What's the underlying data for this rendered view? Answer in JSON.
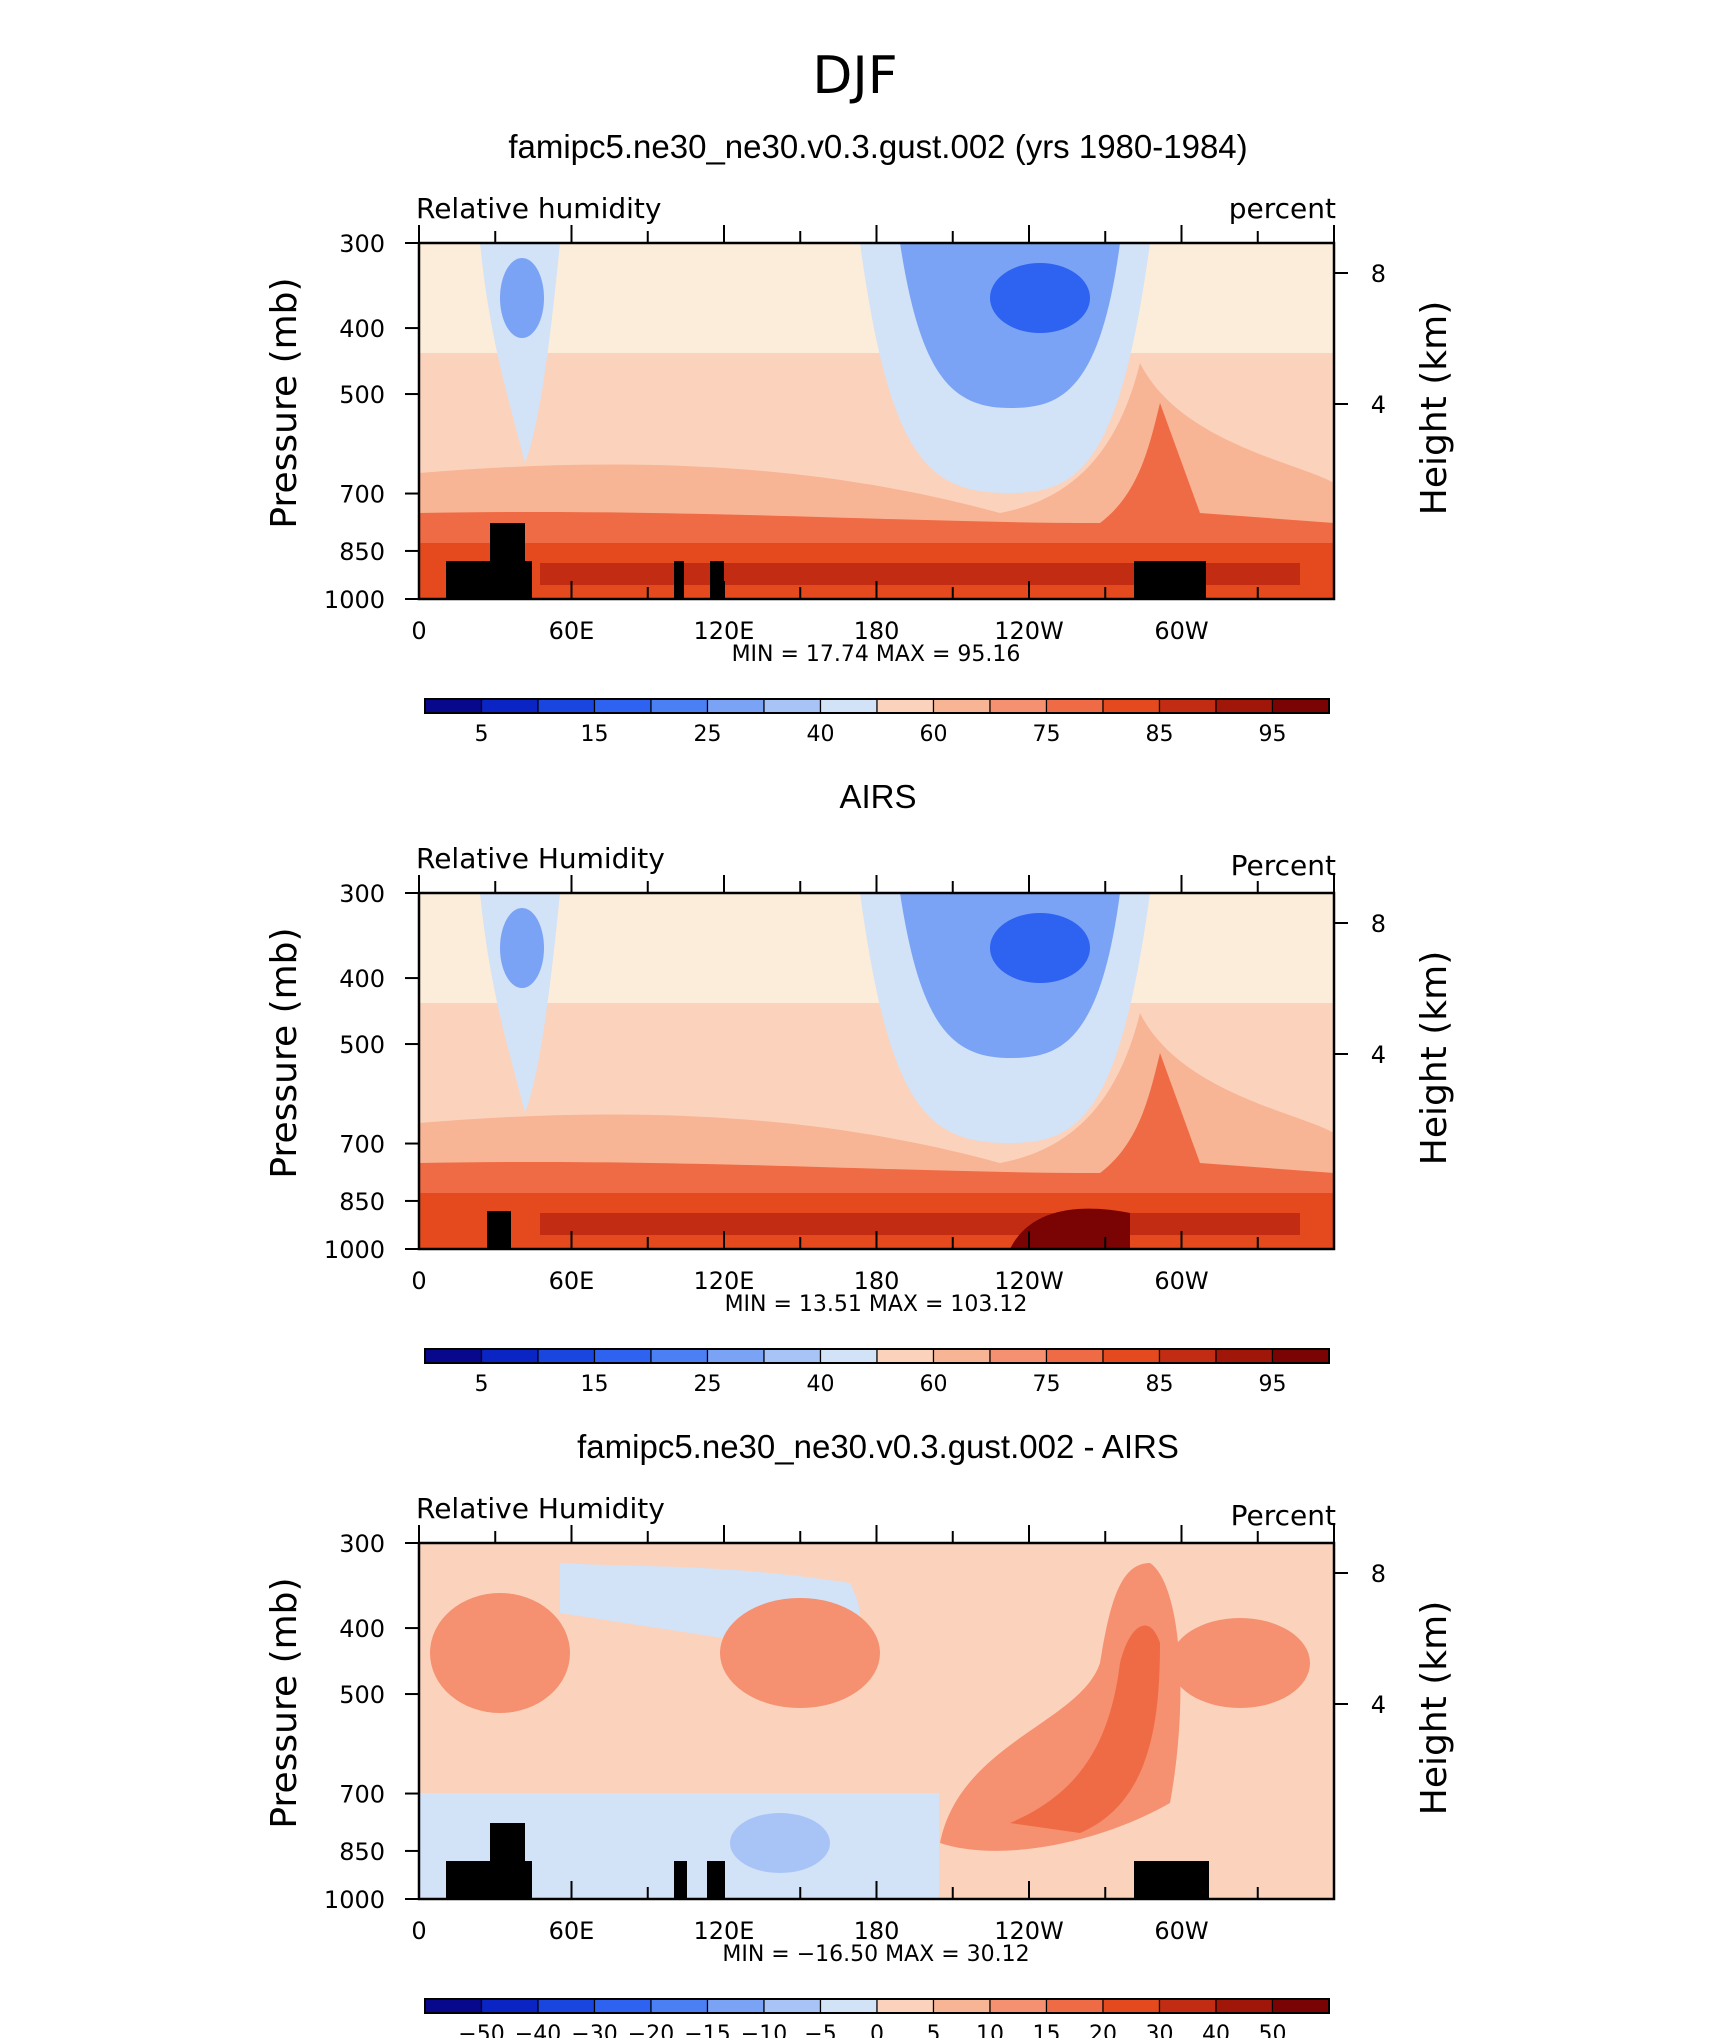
{
  "page_title": "DJF",
  "colors": {
    "rh_scale": [
      "#08088c",
      "#0b24c4",
      "#1a46e0",
      "#2d63f0",
      "#4b80f5",
      "#7aa2f5",
      "#a8c4f7",
      "#d2e2f7",
      "#fcecda",
      "#fbd3bd",
      "#f8b595",
      "#f59070",
      "#ef6b45",
      "#e44a1e",
      "#c22c12",
      "#a01608",
      "#7a0404"
    ],
    "diff_scale": [
      "#08088c",
      "#0b24c4",
      "#1a46e0",
      "#2d63f0",
      "#4b80f5",
      "#7aa2f5",
      "#a8c4f7",
      "#d2e2f7",
      "#fcecda",
      "#fbd3bd",
      "#f8b595",
      "#f59070",
      "#ef6b45",
      "#e44a1e",
      "#c22c12",
      "#a01608",
      "#7a0404"
    ],
    "topography": "#000000"
  },
  "panels": [
    {
      "title": "famipc5.ne30_ne30.v0.3.gust.002 (yrs 1980-1984)",
      "left_label": "Relative  humidity",
      "right_label": "percent",
      "y_axis_label": "Pressure  (mb)",
      "y2_axis_label": "Height  (km)",
      "y_ticks": [
        "300",
        "400",
        "500",
        "700",
        "850",
        "1000"
      ],
      "y2_ticks": [
        "8",
        "4"
      ],
      "x_ticks": [
        "0",
        "60E",
        "120E",
        "180",
        "120W",
        "60W"
      ],
      "min_max": "MIN =   17.74   MAX =    95.16",
      "colorbar_labels": [
        "5",
        "15",
        "25",
        "40",
        "60",
        "75",
        "85",
        "95"
      ]
    },
    {
      "title": "AIRS",
      "left_label": "Relative  Humidity",
      "right_label": "Percent",
      "y_axis_label": "Pressure  (mb)",
      "y2_axis_label": "Height  (km)",
      "y_ticks": [
        "300",
        "400",
        "500",
        "700",
        "850",
        "1000"
      ],
      "y2_ticks": [
        "8",
        "4"
      ],
      "x_ticks": [
        "0",
        "60E",
        "120E",
        "180",
        "120W",
        "60W"
      ],
      "min_max": "MIN =   13.51   MAX =  103.12",
      "colorbar_labels": [
        "5",
        "15",
        "25",
        "40",
        "60",
        "75",
        "85",
        "95"
      ]
    },
    {
      "title": "famipc5.ne30_ne30.v0.3.gust.002 - AIRS",
      "left_label": "Relative  Humidity",
      "right_label": "Percent",
      "y_axis_label": "Pressure  (mb)",
      "y2_axis_label": "Height  (km)",
      "y_ticks": [
        "300",
        "400",
        "500",
        "700",
        "850",
        "1000"
      ],
      "y2_ticks": [
        "8",
        "4"
      ],
      "x_ticks": [
        "0",
        "60E",
        "120E",
        "180",
        "120W",
        "60W"
      ],
      "min_max": "MIN =  −16.50   MAX =    30.12",
      "colorbar_labels": [
        "−50",
        "−40",
        "−30",
        "−20",
        "−15",
        "−10",
        "−5",
        "0",
        "5",
        "10",
        "15",
        "20",
        "30",
        "40",
        "50"
      ]
    }
  ],
  "chart_data": [
    {
      "type": "heatmap",
      "title": "famipc5.ne30_ne30.v0.3.gust.002 (yrs 1980-1984)",
      "ylabel": "Pressure  (mb)",
      "y2label": "Height  (km)",
      "x": [
        "0",
        "60E",
        "120E",
        "180",
        "120W",
        "60W"
      ],
      "y": [
        300,
        400,
        500,
        700,
        850,
        1000
      ],
      "levels": [
        5,
        10,
        15,
        20,
        25,
        30,
        40,
        50,
        60,
        70,
        75,
        80,
        85,
        90,
        95
      ],
      "min": 17.74,
      "max": 95.16,
      "units": "percent"
    },
    {
      "type": "heatmap",
      "title": "AIRS",
      "ylabel": "Pressure  (mb)",
      "y2label": "Height  (km)",
      "x": [
        "0",
        "60E",
        "120E",
        "180",
        "120W",
        "60W"
      ],
      "y": [
        300,
        400,
        500,
        700,
        850,
        1000
      ],
      "levels": [
        5,
        10,
        15,
        20,
        25,
        30,
        40,
        50,
        60,
        70,
        75,
        80,
        85,
        90,
        95
      ],
      "min": 13.51,
      "max": 103.12,
      "units": "Percent"
    },
    {
      "type": "heatmap",
      "title": "famipc5.ne30_ne30.v0.3.gust.002 - AIRS",
      "ylabel": "Pressure  (mb)",
      "y2label": "Height  (km)",
      "x": [
        "0",
        "60E",
        "120E",
        "180",
        "120W",
        "60W"
      ],
      "y": [
        300,
        400,
        500,
        700,
        850,
        1000
      ],
      "levels": [
        -50,
        -40,
        -30,
        -20,
        -15,
        -10,
        -5,
        0,
        5,
        10,
        15,
        20,
        30,
        40,
        50
      ],
      "min": -16.5,
      "max": 30.12,
      "units": "Percent"
    }
  ]
}
